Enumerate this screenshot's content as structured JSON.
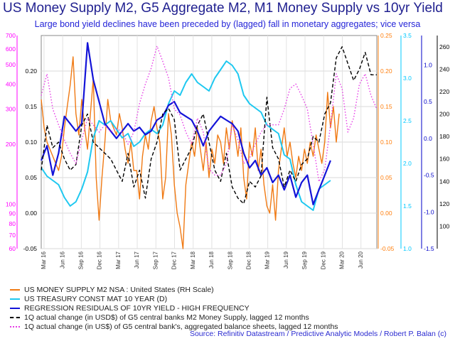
{
  "title": "US Money Supply M2, G5 Aggregate M2, M1 Money Supply vs 10yr Yield",
  "subtitle": "Large bond yield declines have been preceded by (lagged) fall in monetary aggregates; vice versa",
  "source": "Source: Refinitiv Datastream  / Predictive Analytic Models /  Robert P. Balan (c)",
  "chart_data": {
    "type": "line",
    "x_ticks": [
      "Mar 16",
      "Jun 16",
      "Sep 16",
      "Dec 16",
      "Mar 17",
      "Jun 17",
      "Sep 17",
      "Dec 17",
      "Mar 18",
      "Jun 18",
      "Sep 18",
      "Dec 18",
      "Mar 19",
      "Jun 19",
      "Sep 19",
      "Dec 19",
      "Mar 20",
      "Jun 20"
    ],
    "axes": {
      "left_magenta": {
        "color": "#ff00ff",
        "ticks": [
          60,
          70,
          80,
          90,
          100,
          200,
          300,
          400,
          500,
          600,
          700
        ],
        "scale": "log",
        "range": [
          60,
          700
        ]
      },
      "left_black": {
        "color": "#000000",
        "ticks": [
          -0.05,
          0.0,
          0.05,
          0.1,
          0.15,
          0.2
        ],
        "range": [
          -0.05,
          0.25
        ]
      },
      "right_orange": {
        "color": "#ff7f0e",
        "ticks": [
          -0.05,
          0.0,
          0.05,
          0.1,
          0.15,
          0.2,
          0.25
        ],
        "range": [
          -0.05,
          0.25
        ]
      },
      "right_cyan": {
        "color": "#00c8ff",
        "ticks": [
          1.0,
          1.5,
          2.0,
          2.5,
          3.0,
          3.5
        ],
        "range": [
          1.0,
          3.5
        ]
      },
      "right_navy": {
        "color": "#0000c8",
        "ticks": [
          -1.5,
          -1.0,
          -0.5,
          0.0,
          0.5,
          1.0
        ],
        "range": [
          -1.5,
          1.4
        ]
      },
      "right_black": {
        "color": "#000000",
        "ticks": [
          100,
          120,
          140,
          160,
          180,
          200,
          220,
          240,
          260
        ],
        "range": [
          80,
          270
        ]
      }
    },
    "series": [
      {
        "name": "US MONEY SUPPLY M2 NSA : United States (RH Scale)",
        "color": "#f07a14",
        "axis": "right_orange",
        "style": "solid",
        "x": [
          0,
          2,
          4,
          6,
          8,
          10,
          12,
          14,
          16,
          18,
          20,
          22,
          24,
          26,
          28,
          30,
          32,
          34,
          36,
          38,
          40,
          42,
          44,
          46,
          48,
          50,
          52,
          54,
          56,
          58,
          60,
          62,
          64,
          66,
          68,
          70,
          72,
          74,
          76,
          78,
          80,
          82,
          84,
          86,
          88,
          90,
          92,
          94,
          96,
          98,
          100,
          102,
          104,
          106,
          108,
          110,
          112,
          114,
          116,
          118,
          120,
          122,
          124,
          126,
          128,
          130,
          132,
          134,
          136,
          138,
          140,
          142,
          144,
          146,
          148,
          150,
          152,
          154,
          156,
          158,
          160,
          162,
          164,
          166,
          168,
          170,
          172,
          174,
          176,
          178,
          180,
          182,
          184,
          186,
          188,
          190,
          192,
          194,
          196,
          198,
          200,
          202,
          204,
          206
        ],
        "y": [
          0.16,
          0.12,
          0.1,
          0.09,
          0.08,
          0.07,
          0.06,
          0.08,
          0.12,
          0.15,
          0.18,
          0.22,
          0.14,
          0.11,
          0.16,
          0.12,
          0.09,
          0.14,
          0.19,
          0.05,
          -0.01,
          0.05,
          0.1,
          0.16,
          0.13,
          0.12,
          0.11,
          0.14,
          0.12,
          0.09,
          0.07,
          0.1,
          0.06,
          0.06,
          0.02,
          0.08,
          0.11,
          0.09,
          0.13,
          0.15,
          0.12,
          0.1,
          0.02,
          0.05,
          0.14,
          0.11,
          0.04,
          0.0,
          -0.02,
          -0.05,
          0.04,
          0.07,
          0.1,
          0.08,
          0.12,
          0.09,
          0.06,
          0.1,
          0.05,
          0.09,
          0.07,
          0.11,
          0.1,
          0.07,
          0.12,
          0.09,
          0.13,
          0.11,
          0.08,
          0.12,
          0.05,
          0.02,
          0.1,
          0.08,
          0.12,
          0.06,
          0.09,
          0.04,
          0.01,
          0.0,
          0.04,
          -0.01,
          0.06,
          0.09,
          0.12,
          0.08,
          0.1,
          0.07,
          0.05,
          0.08,
          0.06,
          0.09,
          0.07,
          0.1,
          0.08,
          0.11,
          0.09,
          0.07,
          0.1,
          0.17,
          0.12,
          0.15,
          0.1,
          0.14
        ]
      },
      {
        "name": "US TREASURY CONST MAT 10 YEAR (D)",
        "color": "#1ec8f0",
        "axis": "right_cyan",
        "style": "solid",
        "x": [
          0,
          4,
          8,
          12,
          16,
          20,
          24,
          28,
          32,
          36,
          40,
          44,
          48,
          52,
          56,
          60,
          64,
          68,
          72,
          76,
          80,
          84,
          88,
          92,
          96,
          100,
          104,
          108,
          112,
          116,
          120,
          124,
          128,
          132,
          136,
          140,
          144,
          148,
          152,
          156,
          160,
          164,
          168,
          172,
          176,
          180,
          184,
          188,
          192,
          196,
          200
        ],
        "y": [
          1.95,
          1.85,
          1.8,
          1.75,
          1.6,
          1.5,
          1.55,
          1.7,
          1.9,
          2.3,
          2.5,
          2.45,
          2.5,
          2.4,
          2.3,
          2.35,
          2.2,
          2.25,
          2.35,
          2.4,
          2.35,
          2.45,
          2.7,
          2.85,
          2.8,
          2.95,
          3.05,
          2.95,
          2.9,
          2.85,
          3.0,
          3.1,
          3.2,
          3.15,
          3.05,
          2.8,
          2.7,
          2.65,
          2.6,
          2.45,
          2.4,
          2.35,
          2.1,
          2.05,
          1.75,
          1.55,
          1.5,
          1.45,
          1.7,
          1.75,
          1.8
        ]
      },
      {
        "name": "REGRESSION RESIDUALS OF 10YR YIELD - HIGH FREQUENCY",
        "color": "#1414d8",
        "axis": "right_navy",
        "style": "solid",
        "x": [
          0,
          4,
          8,
          12,
          16,
          20,
          24,
          28,
          32,
          36,
          40,
          44,
          48,
          52,
          56,
          60,
          64,
          68,
          72,
          76,
          80,
          84,
          88,
          92,
          96,
          100,
          104,
          108,
          112,
          116,
          120,
          124,
          128,
          132,
          136,
          140,
          144,
          148,
          152,
          156,
          160,
          164,
          168,
          172,
          176,
          180,
          184,
          188,
          192,
          196,
          200
        ],
        "y": [
          -0.3,
          -0.1,
          -0.5,
          -0.2,
          0.3,
          0.2,
          0.1,
          0.2,
          1.3,
          0.8,
          0.5,
          0.2,
          0.1,
          0.0,
          0.1,
          0.2,
          0.1,
          0.15,
          0.05,
          0.1,
          0.25,
          0.3,
          0.45,
          0.5,
          0.35,
          0.3,
          0.25,
          0.1,
          -0.1,
          0.1,
          0.2,
          0.3,
          0.25,
          0.2,
          0.1,
          -0.2,
          -0.4,
          -0.3,
          -0.5,
          -0.4,
          -0.6,
          -0.5,
          -0.7,
          -0.5,
          -0.8,
          -0.6,
          -0.5,
          -0.9,
          -0.7,
          -0.5,
          -0.3
        ]
      },
      {
        "name": "1Q actual change (in USD$) of G5 central banks M2 Money Supply, lagged 12 months",
        "color": "#000000",
        "axis": "right_black",
        "style": "dashed",
        "x": [
          0,
          4,
          8,
          12,
          16,
          20,
          24,
          28,
          32,
          36,
          40,
          44,
          48,
          52,
          56,
          60,
          64,
          68,
          72,
          76,
          80,
          84,
          88,
          92,
          96,
          100,
          104,
          108,
          112,
          116,
          120,
          124,
          128,
          132,
          136,
          140,
          144,
          148,
          152,
          156,
          160,
          164,
          168,
          172,
          176,
          180,
          184,
          188,
          192,
          196,
          200,
          204,
          208,
          212,
          216,
          220,
          224,
          228,
          232
        ],
        "y": [
          150,
          190,
          170,
          175,
          160,
          150,
          155,
          190,
          200,
          175,
          170,
          165,
          160,
          150,
          140,
          165,
          135,
          150,
          125,
          160,
          175,
          200,
          205,
          195,
          150,
          160,
          170,
          190,
          200,
          175,
          150,
          140,
          165,
          135,
          125,
          120,
          140,
          135,
          145,
          215,
          170,
          160,
          135,
          150,
          140,
          155,
          160,
          180,
          175,
          200,
          210,
          250,
          260,
          245,
          230,
          240,
          255,
          235,
          235
        ]
      },
      {
        "name": "1Q actual change (in US$) of G5 central bank's, aggregated balance sheets, lagged 12 months",
        "color": "#e63ce6",
        "axis": "left_magenta",
        "style": "dotted",
        "x": [
          0,
          4,
          8,
          12,
          16,
          20,
          24,
          28,
          32,
          36,
          40,
          44,
          48,
          52,
          56,
          60,
          64,
          68,
          72,
          76,
          80,
          84,
          88,
          92,
          96,
          100,
          104,
          108,
          112,
          116,
          120,
          124,
          128,
          132,
          136,
          140,
          144,
          148,
          152,
          156,
          160,
          164,
          168,
          172,
          176,
          180,
          184,
          188,
          192,
          196,
          200,
          204,
          208,
          212,
          216,
          220,
          224,
          228,
          232
        ],
        "y": [
          350,
          450,
          300,
          250,
          210,
          180,
          160,
          210,
          270,
          250,
          230,
          250,
          230,
          240,
          230,
          200,
          230,
          320,
          400,
          480,
          620,
          520,
          430,
          300,
          280,
          230,
          200,
          270,
          230,
          150,
          140,
          140,
          160,
          250,
          210,
          160,
          170,
          200,
          230,
          250,
          250,
          250,
          300,
          380,
          400,
          350,
          300,
          200,
          130,
          150,
          250,
          450,
          380,
          230,
          270,
          400,
          450,
          350,
          300
        ]
      }
    ]
  },
  "legend": [
    {
      "label": "US MONEY SUPPLY M2 NSA : United States (RH Scale)",
      "color": "#f07a14",
      "style": "solid"
    },
    {
      "label": "US TREASURY CONST MAT 10 YEAR (D)",
      "color": "#1ec8f0",
      "style": "solid"
    },
    {
      "label": "REGRESSION RESIDUALS OF 10YR YIELD - HIGH FREQUENCY",
      "color": "#1414d8",
      "style": "solid"
    },
    {
      "label": "1Q actual change (in USD$) of G5 central banks M2 Money Supply, lagged 12 months",
      "color": "#000000",
      "style": "dashed"
    },
    {
      "label": "1Q actual change (in US$) of G5 central bank's, aggregated balance sheets, lagged 12 months",
      "color": "#e63ce6",
      "style": "dotted"
    }
  ]
}
